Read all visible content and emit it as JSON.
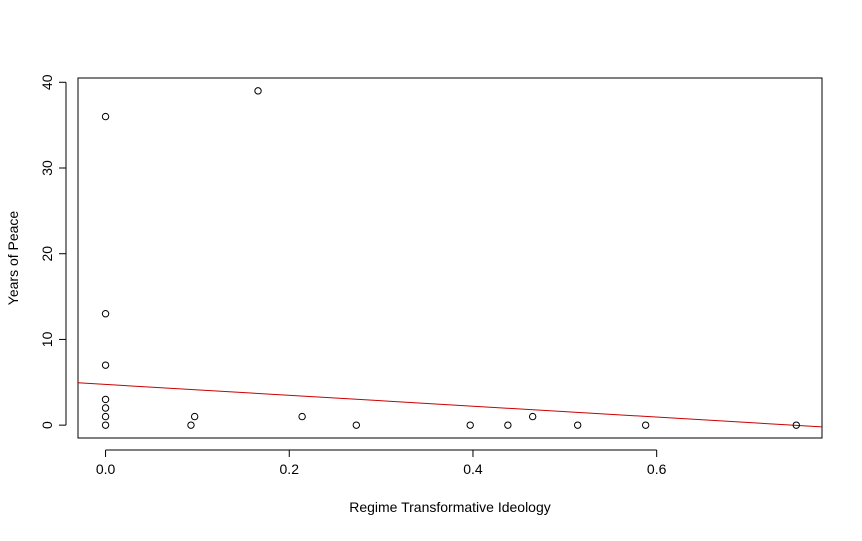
{
  "chart_data": {
    "type": "scatter",
    "title": "",
    "xlabel": "Regime Transformative Ideology",
    "ylabel": "Years of Peace",
    "xlim": [
      -0.03,
      0.78
    ],
    "ylim": [
      -1.5,
      40.5
    ],
    "x_ticks": [
      0.0,
      0.2,
      0.4,
      0.6
    ],
    "x_tick_labels": [
      "0.0",
      "0.2",
      "0.4",
      "0.6"
    ],
    "y_ticks": [
      0,
      10,
      20,
      30,
      40
    ],
    "y_tick_labels": [
      "0",
      "10",
      "20",
      "30",
      "40"
    ],
    "grid": false,
    "legend": "none",
    "point_style": "open-circle",
    "points": [
      {
        "x": 0.0,
        "y": 36
      },
      {
        "x": 0.0,
        "y": 13
      },
      {
        "x": 0.0,
        "y": 7
      },
      {
        "x": 0.0,
        "y": 3
      },
      {
        "x": 0.0,
        "y": 2
      },
      {
        "x": 0.0,
        "y": 1
      },
      {
        "x": 0.0,
        "y": 0
      },
      {
        "x": 0.093,
        "y": 0
      },
      {
        "x": 0.097,
        "y": 1
      },
      {
        "x": 0.166,
        "y": 39
      },
      {
        "x": 0.214,
        "y": 1
      },
      {
        "x": 0.273,
        "y": 0
      },
      {
        "x": 0.397,
        "y": 0
      },
      {
        "x": 0.438,
        "y": 0
      },
      {
        "x": 0.465,
        "y": 1
      },
      {
        "x": 0.514,
        "y": 0
      },
      {
        "x": 0.588,
        "y": 0
      },
      {
        "x": 0.752,
        "y": 0
      }
    ],
    "fit_line": {
      "color": "#cc0000",
      "intercept": 4.75,
      "slope": -6.35
    },
    "colors": {
      "points": "#000000",
      "axes": "#000000",
      "background": "#ffffff"
    }
  }
}
